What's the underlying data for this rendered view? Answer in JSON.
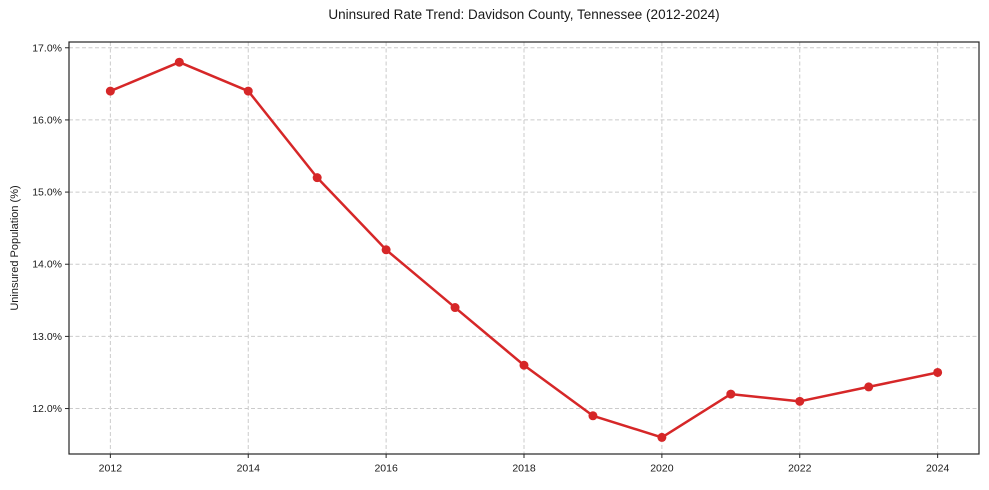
{
  "chart_data": {
    "type": "line",
    "title": "Uninsured Rate Trend: Davidson County, Tennessee (2012-2024)",
    "xlabel": "",
    "ylabel": "Uninsured Population (%)",
    "x": [
      2012,
      2013,
      2014,
      2015,
      2016,
      2017,
      2018,
      2019,
      2020,
      2021,
      2022,
      2023,
      2024
    ],
    "values": [
      16.4,
      16.8,
      16.4,
      15.2,
      14.2,
      13.4,
      12.6,
      11.9,
      11.6,
      12.2,
      12.1,
      12.3,
      12.5
    ],
    "xlim": [
      2011.4,
      2024.6
    ],
    "ylim": [
      11.37,
      17.08
    ],
    "x_tick_values": [
      2012,
      2014,
      2016,
      2018,
      2020,
      2022,
      2024
    ],
    "x_tick_labels": [
      "2012",
      "2014",
      "2016",
      "2018",
      "2020",
      "2022",
      "2024"
    ],
    "y_tick_values": [
      12.0,
      13.0,
      14.0,
      15.0,
      16.0,
      17.0
    ],
    "y_tick_labels": [
      "12.0%",
      "13.0%",
      "14.0%",
      "15.0%",
      "16.0%",
      "17.0%"
    ],
    "grid": true,
    "legend_position": "none",
    "line_color": "#d62728",
    "marker": "circle",
    "grid_color": "#cbcbcb",
    "frame_color": "#262626",
    "text_color": "#1a1a1a",
    "background_color": "#ffffff"
  }
}
